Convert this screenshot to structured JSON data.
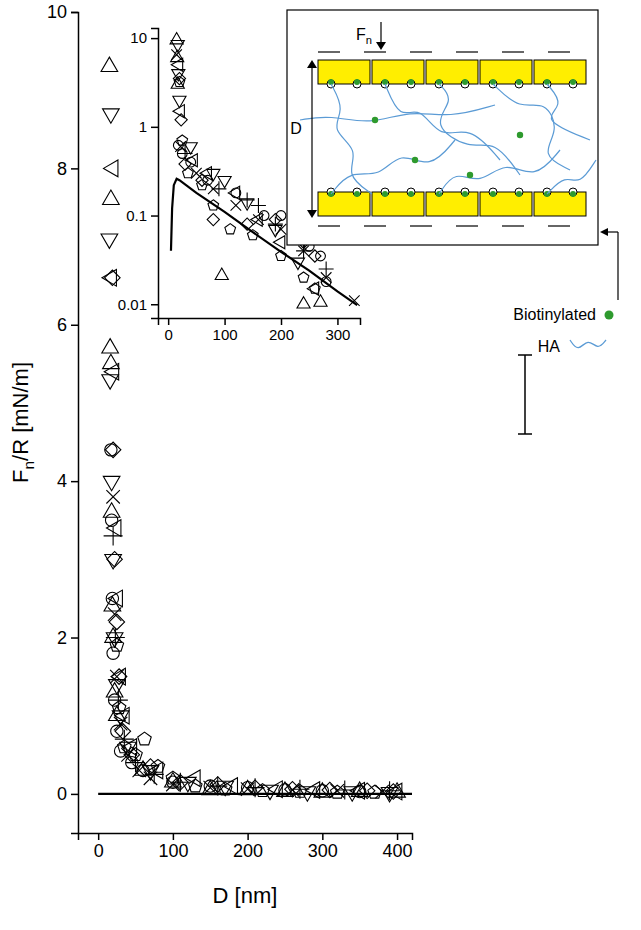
{
  "chart_data": [
    {
      "type": "scatter",
      "x_label": "D [nm]",
      "y_label": [
        {
          "text": "F"
        },
        {
          "text": "n",
          "sub": true
        },
        {
          "text": "/R [mN/m]"
        }
      ],
      "xlim": [
        -27,
        420
      ],
      "ylim": [
        -0.5,
        10
      ],
      "xticks": [
        0,
        100,
        200,
        300,
        400
      ],
      "yticks": [
        0,
        2,
        4,
        6,
        8,
        10
      ],
      "series": [
        {
          "marker": "triangle-up",
          "color": "#000000",
          "x": [
            15,
            16,
            17,
            17,
            18,
            19,
            20,
            22,
            25,
            60,
            100,
            150,
            200,
            250,
            300,
            350,
            400
          ],
          "values": [
            9.3,
            5.7,
            7.6,
            5.5,
            3.6,
            2.4,
            2.0,
            1.3,
            1.0,
            0.3,
            0.15,
            0.05,
            0.05,
            0.03,
            0.02,
            0.03,
            0.02
          ]
        },
        {
          "marker": "triangle-down",
          "color": "#000000",
          "x": [
            17,
            15,
            16,
            18,
            20,
            22,
            25,
            30,
            40,
            70,
            120,
            170,
            230,
            280,
            340,
            390
          ],
          "values": [
            8.7,
            7.1,
            5.3,
            4.0,
            3.0,
            2.0,
            1.4,
            1.0,
            0.6,
            0.3,
            0.15,
            0.1,
            0.05,
            0.03,
            0.03,
            0.02
          ]
        },
        {
          "marker": "triangle-left",
          "color": "#000000",
          "x": [
            20,
            18,
            21,
            24,
            26,
            30,
            35,
            45,
            80,
            130,
            180,
            240,
            290,
            350,
            400
          ],
          "values": [
            8.0,
            6.6,
            5.4,
            3.4,
            2.5,
            1.5,
            1.0,
            0.6,
            0.3,
            0.2,
            0.1,
            0.06,
            0.05,
            0.04,
            0.03
          ]
        },
        {
          "marker": "diamond",
          "color": "#000000",
          "x": [
            19,
            20,
            22,
            25,
            28,
            33,
            45,
            70,
            110,
            160,
            210,
            260,
            310,
            360,
            395
          ],
          "values": [
            6.6,
            4.4,
            3.0,
            2.2,
            1.5,
            0.8,
            0.5,
            0.35,
            0.15,
            0.12,
            0.08,
            0.06,
            0.05,
            0.04,
            0.03
          ]
        },
        {
          "marker": "circle",
          "color": "#000000",
          "x": [
            17,
            18,
            19,
            20,
            22,
            25,
            30,
            45,
            60,
            100,
            150,
            200,
            250,
            300,
            350
          ],
          "values": [
            4.4,
            3.5,
            2.5,
            1.8,
            1.2,
            0.8,
            0.55,
            0.4,
            0.3,
            0.15,
            0.1,
            0.08,
            0.05,
            0.04,
            0.03
          ]
        },
        {
          "marker": "pentagon",
          "color": "#000000",
          "x": [
            25,
            28,
            35,
            50,
            62,
            80,
            100,
            130,
            170,
            220,
            270,
            320,
            370
          ],
          "values": [
            1.9,
            1.1,
            0.6,
            0.5,
            0.7,
            0.35,
            0.2,
            0.1,
            0.06,
            0.04,
            0.03,
            0.02,
            0.02
          ]
        },
        {
          "marker": "x",
          "color": "#000000",
          "x": [
            20,
            22,
            25,
            30,
            40,
            55,
            70,
            100,
            150,
            200,
            260,
            320,
            380
          ],
          "values": [
            3.8,
            2.3,
            1.5,
            0.9,
            0.5,
            0.3,
            0.2,
            0.12,
            0.08,
            0.06,
            0.05,
            0.04,
            0.03
          ]
        },
        {
          "marker": "plus",
          "color": "#000000",
          "x": [
            20,
            23,
            27,
            35,
            50,
            75,
            110,
            160,
            210,
            270,
            330,
            390
          ],
          "values": [
            3.3,
            2.0,
            1.2,
            0.7,
            0.4,
            0.25,
            0.15,
            0.1,
            0.08,
            0.06,
            0.05,
            0.04
          ]
        },
        {
          "type": "line",
          "line_style": "solid",
          "color": "#000000",
          "x": [
            0,
            420
          ],
          "values": [
            0,
            0
          ]
        }
      ]
    },
    {
      "type": "scatter",
      "log": "y",
      "xlim": [
        -18,
        340
      ],
      "ylim": [
        0.007,
        13
      ],
      "xticks": [
        0,
        100,
        200,
        300
      ],
      "yticks": [
        0.01,
        0.1,
        1,
        10
      ],
      "series": [
        {
          "marker": "triangle-up",
          "color": "#000000",
          "x": [
            15,
            16,
            17,
            95,
            240,
            270
          ],
          "values": [
            9.5,
            6.0,
            3.0,
            0.021,
            0.01,
            0.0105
          ]
        },
        {
          "marker": "triangle-down",
          "color": "#000000",
          "x": [
            17,
            18,
            20,
            40,
            80,
            100,
            140,
            190,
            230
          ],
          "values": [
            8.5,
            4.0,
            2.0,
            0.6,
            0.3,
            0.25,
            0.14,
            0.07,
            0.03
          ]
        },
        {
          "marker": "triangle-left",
          "color": "#000000",
          "x": [
            19,
            22,
            45,
            70,
            120,
            160,
            200,
            260
          ],
          "values": [
            5.0,
            1.5,
            0.42,
            0.3,
            0.18,
            0.09,
            0.05,
            0.015
          ]
        },
        {
          "marker": "diamond",
          "color": "#000000",
          "x": [
            20,
            23,
            30,
            60,
            80,
            140,
            190,
            240,
            260
          ],
          "values": [
            3.5,
            1.2,
            0.38,
            0.25,
            0.09,
            0.08,
            0.09,
            0.05,
            0.035
          ]
        },
        {
          "marker": "circle",
          "color": "#000000",
          "x": [
            18,
            25,
            40,
            70,
            120,
            170,
            200,
            250,
            270,
            280
          ],
          "values": [
            0.62,
            0.5,
            0.4,
            0.25,
            0.18,
            0.1,
            0.1,
            0.045,
            0.035,
            0.018
          ]
        },
        {
          "marker": "pentagon",
          "color": "#000000",
          "x": [
            20,
            25,
            35,
            60,
            80,
            110,
            150,
            200,
            240,
            260
          ],
          "values": [
            3.2,
            0.7,
            0.3,
            0.22,
            0.13,
            0.07,
            0.06,
            0.035,
            0.02,
            0.015
          ]
        },
        {
          "marker": "x",
          "color": "#000000",
          "x": [
            15,
            22,
            50,
            80,
            120,
            160,
            200,
            240,
            280,
            330
          ],
          "values": [
            6.5,
            0.6,
            0.3,
            0.2,
            0.13,
            0.09,
            0.07,
            0.04,
            0.02,
            0.011
          ]
        },
        {
          "marker": "plus",
          "color": "#000000",
          "x": [
            30,
            90,
            140,
            160,
            190,
            240,
            280
          ],
          "values": [
            0.5,
            0.2,
            0.15,
            0.13,
            0.08,
            0.04,
            0.025
          ]
        },
        {
          "type": "line",
          "line_style": "solid",
          "color": "#000000",
          "x": [
            5,
            7,
            10,
            15,
            20,
            50,
            100,
            150,
            200,
            250,
            300,
            335
          ],
          "values": [
            0.04,
            0.12,
            0.22,
            0.26,
            0.25,
            0.18,
            0.11,
            0.065,
            0.039,
            0.024,
            0.014,
            0.0098
          ]
        }
      ]
    }
  ],
  "diagram": {
    "force_label": [
      {
        "text": "F"
      },
      {
        "text": "n",
        "sub": true
      }
    ],
    "gap_label": "D",
    "items": [
      {
        "label": "Biotinylated",
        "color": "#2e9a2e"
      },
      {
        "label": "HA",
        "color": "#5b9bd5"
      }
    ]
  }
}
